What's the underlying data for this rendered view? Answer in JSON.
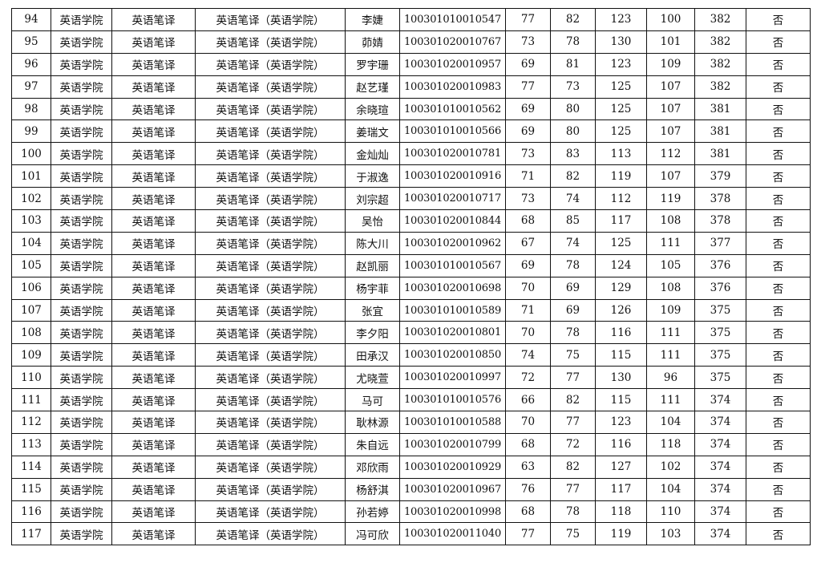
{
  "rows": [
    [
      "94",
      "英语学院",
      "英语笔译",
      "英语笔译（英语学院）",
      "李婕",
      "100301010010547",
      "77",
      "82",
      "123",
      "100",
      "382",
      "否"
    ],
    [
      "95",
      "英语学院",
      "英语笔译",
      "英语笔译（英语学院）",
      "茆婧",
      "100301020010767",
      "73",
      "78",
      "130",
      "101",
      "382",
      "否"
    ],
    [
      "96",
      "英语学院",
      "英语笔译",
      "英语笔译（英语学院）",
      "罗宇珊",
      "100301020010957",
      "69",
      "81",
      "123",
      "109",
      "382",
      "否"
    ],
    [
      "97",
      "英语学院",
      "英语笔译",
      "英语笔译（英语学院）",
      "赵艺瑾",
      "100301020010983",
      "77",
      "73",
      "125",
      "107",
      "382",
      "否"
    ],
    [
      "98",
      "英语学院",
      "英语笔译",
      "英语笔译（英语学院）",
      "余晓瑄",
      "100301010010562",
      "69",
      "80",
      "125",
      "107",
      "381",
      "否"
    ],
    [
      "99",
      "英语学院",
      "英语笔译",
      "英语笔译（英语学院）",
      "姜瑞文",
      "100301010010566",
      "69",
      "80",
      "125",
      "107",
      "381",
      "否"
    ],
    [
      "100",
      "英语学院",
      "英语笔译",
      "英语笔译（英语学院）",
      "金灿灿",
      "100301020010781",
      "73",
      "83",
      "113",
      "112",
      "381",
      "否"
    ],
    [
      "101",
      "英语学院",
      "英语笔译",
      "英语笔译（英语学院）",
      "于淑逸",
      "100301020010916",
      "71",
      "82",
      "119",
      "107",
      "379",
      "否"
    ],
    [
      "102",
      "英语学院",
      "英语笔译",
      "英语笔译（英语学院）",
      "刘宗超",
      "100301020010717",
      "73",
      "74",
      "112",
      "119",
      "378",
      "否"
    ],
    [
      "103",
      "英语学院",
      "英语笔译",
      "英语笔译（英语学院）",
      "吴怡",
      "100301020010844",
      "68",
      "85",
      "117",
      "108",
      "378",
      "否"
    ],
    [
      "104",
      "英语学院",
      "英语笔译",
      "英语笔译（英语学院）",
      "陈大川",
      "100301020010962",
      "67",
      "74",
      "125",
      "111",
      "377",
      "否"
    ],
    [
      "105",
      "英语学院",
      "英语笔译",
      "英语笔译（英语学院）",
      "赵凯丽",
      "100301010010567",
      "69",
      "78",
      "124",
      "105",
      "376",
      "否"
    ],
    [
      "106",
      "英语学院",
      "英语笔译",
      "英语笔译（英语学院）",
      "杨宇菲",
      "100301020010698",
      "70",
      "69",
      "129",
      "108",
      "376",
      "否"
    ],
    [
      "107",
      "英语学院",
      "英语笔译",
      "英语笔译（英语学院）",
      "张宜",
      "100301010010589",
      "71",
      "69",
      "126",
      "109",
      "375",
      "否"
    ],
    [
      "108",
      "英语学院",
      "英语笔译",
      "英语笔译（英语学院）",
      "李夕阳",
      "100301020010801",
      "70",
      "78",
      "116",
      "111",
      "375",
      "否"
    ],
    [
      "109",
      "英语学院",
      "英语笔译",
      "英语笔译（英语学院）",
      "田承汉",
      "100301020010850",
      "74",
      "75",
      "115",
      "111",
      "375",
      "否"
    ],
    [
      "110",
      "英语学院",
      "英语笔译",
      "英语笔译（英语学院）",
      "尤晓萱",
      "100301020010997",
      "72",
      "77",
      "130",
      "96",
      "375",
      "否"
    ],
    [
      "111",
      "英语学院",
      "英语笔译",
      "英语笔译（英语学院）",
      "马可",
      "100301010010576",
      "66",
      "82",
      "115",
      "111",
      "374",
      "否"
    ],
    [
      "112",
      "英语学院",
      "英语笔译",
      "英语笔译（英语学院）",
      "耿林源",
      "100301010010588",
      "70",
      "77",
      "123",
      "104",
      "374",
      "否"
    ],
    [
      "113",
      "英语学院",
      "英语笔译",
      "英语笔译（英语学院）",
      "朱自远",
      "100301020010799",
      "68",
      "72",
      "116",
      "118",
      "374",
      "否"
    ],
    [
      "114",
      "英语学院",
      "英语笔译",
      "英语笔译（英语学院）",
      "邓欣雨",
      "100301020010929",
      "63",
      "82",
      "127",
      "102",
      "374",
      "否"
    ],
    [
      "115",
      "英语学院",
      "英语笔译",
      "英语笔译（英语学院）",
      "杨舒淇",
      "100301020010967",
      "76",
      "77",
      "117",
      "104",
      "374",
      "否"
    ],
    [
      "116",
      "英语学院",
      "英语笔译",
      "英语笔译（英语学院）",
      "孙若婷",
      "100301020010998",
      "68",
      "78",
      "118",
      "110",
      "374",
      "否"
    ],
    [
      "117",
      "英语学院",
      "英语笔译",
      "英语笔译（英语学院）",
      "冯可欣",
      "100301020011040",
      "77",
      "75",
      "119",
      "103",
      "374",
      "否"
    ]
  ]
}
